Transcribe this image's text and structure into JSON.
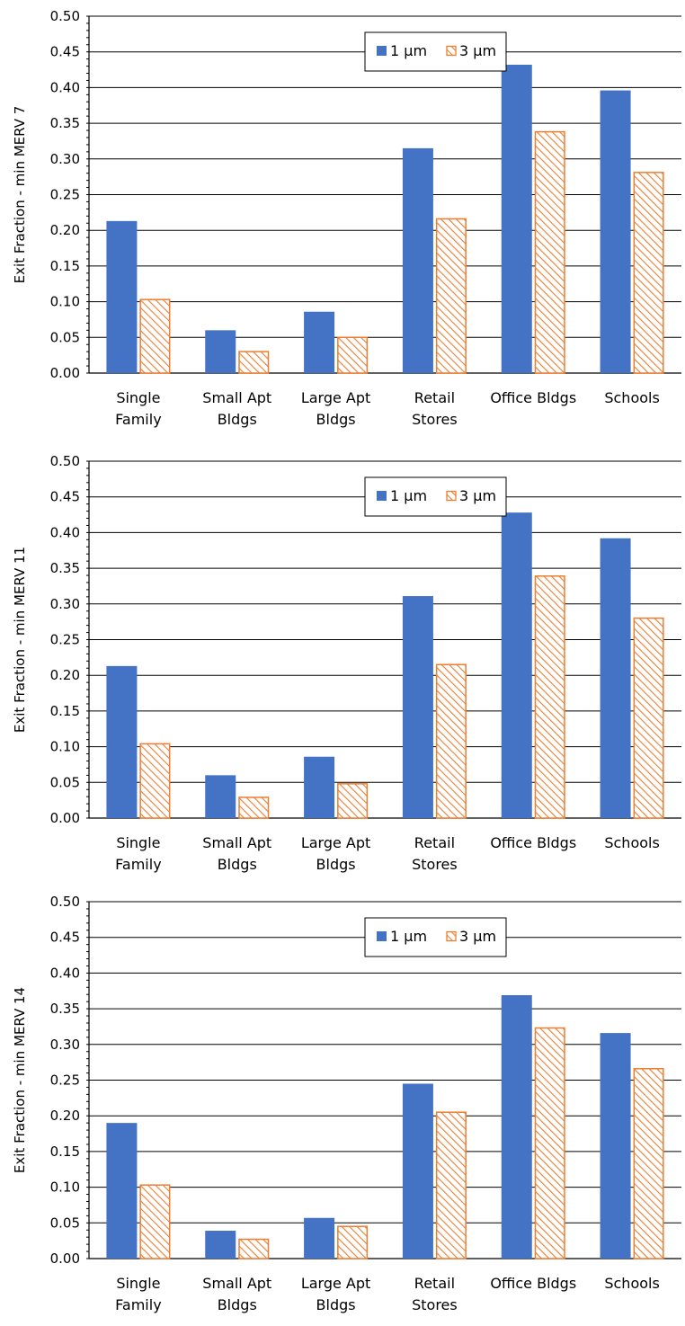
{
  "colors": {
    "series_1um": "#4472C4",
    "series_3um": "#ED7D31",
    "gridline": "#000000",
    "background": "#FFFFFF"
  },
  "chart_data": [
    {
      "type": "bar",
      "title": "",
      "xlabel": "",
      "ylabel": "Exit Fraction - min MERV 7",
      "ylim": [
        0,
        0.5
      ],
      "yticks": [
        "0.00",
        "0.05",
        "0.10",
        "0.15",
        "0.20",
        "0.25",
        "0.30",
        "0.35",
        "0.40",
        "0.45",
        "0.50"
      ],
      "grid": true,
      "legend_position": "top-center",
      "categories": [
        [
          "Single",
          "Family"
        ],
        [
          "Small Apt",
          "Bldgs"
        ],
        [
          "Large Apt",
          "Bldgs"
        ],
        [
          "Retail",
          "Stores"
        ],
        [
          "Office Bldgs"
        ],
        [
          "Schools"
        ]
      ],
      "series": [
        {
          "name": "1 µm",
          "pattern": "solid",
          "values": [
            0.213,
            0.06,
            0.086,
            0.315,
            0.432,
            0.396
          ]
        },
        {
          "name": "3 µm",
          "pattern": "hatched",
          "values": [
            0.104,
            0.031,
            0.051,
            0.217,
            0.339,
            0.282
          ]
        }
      ]
    },
    {
      "type": "bar",
      "title": "",
      "xlabel": "",
      "ylabel": "Exit Fraction - min MERV 11",
      "ylim": [
        0,
        0.5
      ],
      "yticks": [
        "0.00",
        "0.05",
        "0.10",
        "0.15",
        "0.20",
        "0.25",
        "0.30",
        "0.35",
        "0.40",
        "0.45",
        "0.50"
      ],
      "grid": true,
      "legend_position": "top-center",
      "categories": [
        [
          "Single",
          "Family"
        ],
        [
          "Small Apt",
          "Bldgs"
        ],
        [
          "Large Apt",
          "Bldgs"
        ],
        [
          "Retail",
          "Stores"
        ],
        [
          "Office Bldgs"
        ],
        [
          "Schools"
        ]
      ],
      "series": [
        {
          "name": "1 µm",
          "pattern": "solid",
          "values": [
            0.213,
            0.06,
            0.086,
            0.311,
            0.428,
            0.392
          ]
        },
        {
          "name": "3 µm",
          "pattern": "hatched",
          "values": [
            0.105,
            0.03,
            0.049,
            0.216,
            0.34,
            0.281
          ]
        }
      ]
    },
    {
      "type": "bar",
      "title": "",
      "xlabel": "",
      "ylabel": "Exit Fraction - min MERV 14",
      "ylim": [
        0,
        0.5
      ],
      "yticks": [
        "0.00",
        "0.05",
        "0.10",
        "0.15",
        "0.20",
        "0.25",
        "0.30",
        "0.35",
        "0.40",
        "0.45",
        "0.50"
      ],
      "grid": true,
      "legend_position": "top-center",
      "categories": [
        [
          "Single",
          "Family"
        ],
        [
          "Small Apt",
          "Bldgs"
        ],
        [
          "Large Apt",
          "Bldgs"
        ],
        [
          "Retail",
          "Stores"
        ],
        [
          "Office Bldgs"
        ],
        [
          "Schools"
        ]
      ],
      "series": [
        {
          "name": "1 µm",
          "pattern": "solid",
          "values": [
            0.19,
            0.039,
            0.057,
            0.245,
            0.369,
            0.316
          ]
        },
        {
          "name": "3 µm",
          "pattern": "hatched",
          "values": [
            0.104,
            0.028,
            0.046,
            0.206,
            0.324,
            0.267
          ]
        }
      ]
    }
  ]
}
